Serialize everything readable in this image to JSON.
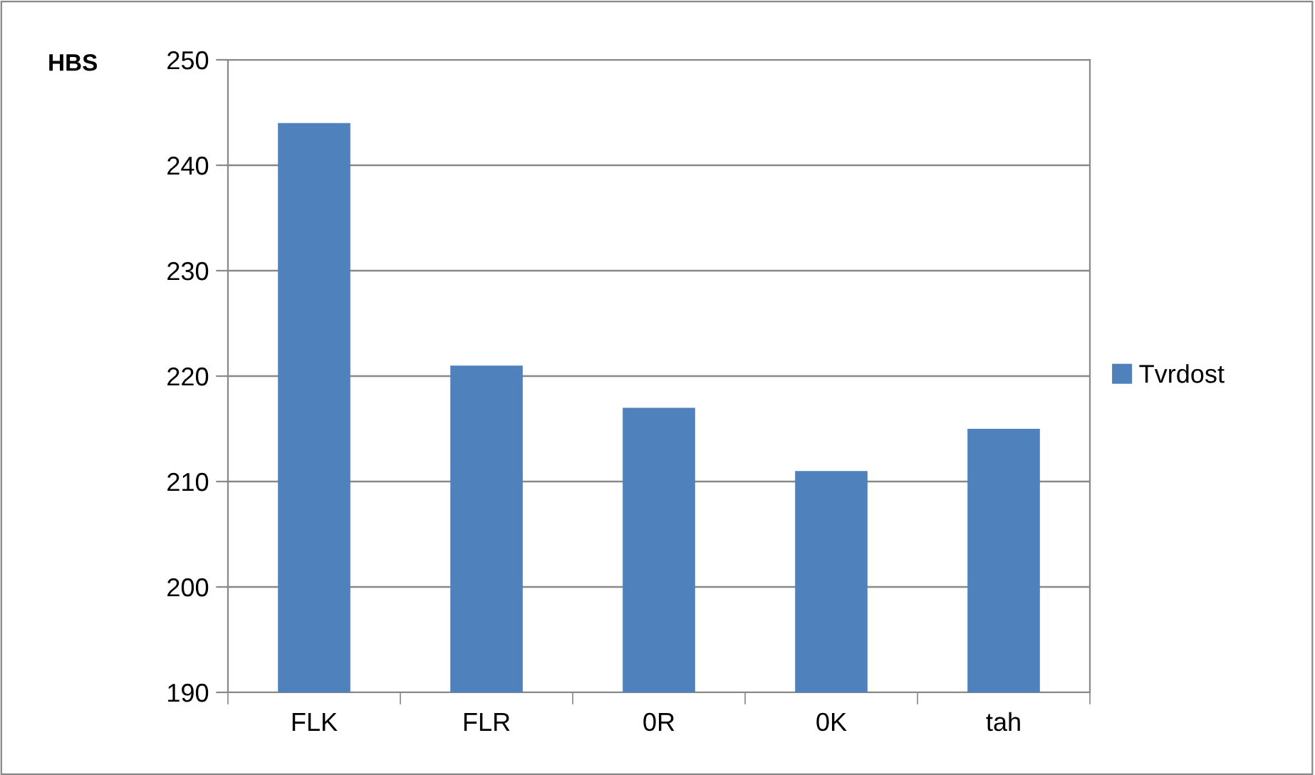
{
  "chart_data": {
    "type": "bar",
    "ylabel": "HBS",
    "categories": [
      "FLK",
      "FLR",
      "0R",
      "0K",
      "tah"
    ],
    "series": [
      {
        "name": "Tvrdost",
        "color": "#4f81bd",
        "values": [
          244,
          221,
          217,
          211,
          215
        ]
      }
    ],
    "ylim": [
      190,
      250
    ],
    "yticks": [
      190,
      200,
      210,
      220,
      230,
      240,
      250
    ],
    "grid": "y",
    "legend": "right"
  }
}
